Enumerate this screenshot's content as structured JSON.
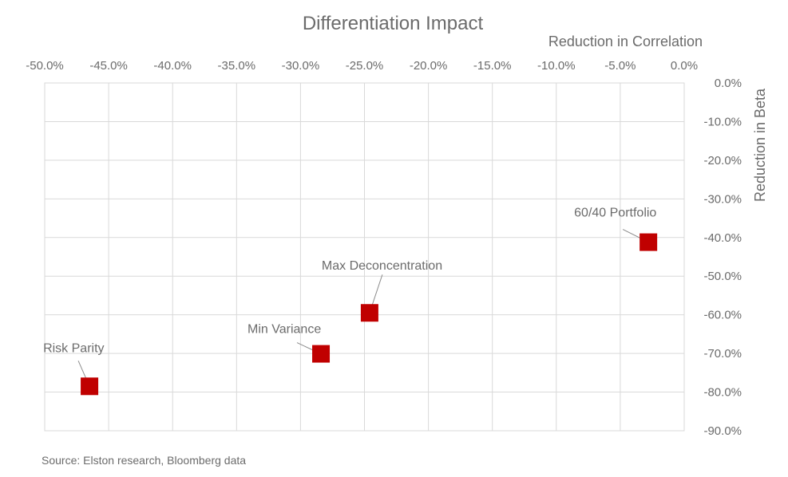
{
  "chart_data": {
    "type": "scatter",
    "title": "Differentiation Impact",
    "xlabel": "Reduction in Correlation",
    "ylabel": "Reduction in Beta",
    "xlim": [
      -0.5,
      0.0
    ],
    "ylim": [
      -0.9,
      0.0
    ],
    "x_ticks": [
      -0.5,
      -0.45,
      -0.4,
      -0.35,
      -0.3,
      -0.25,
      -0.2,
      -0.15,
      -0.1,
      -0.05,
      0.0
    ],
    "y_ticks": [
      0.0,
      -0.1,
      -0.2,
      -0.3,
      -0.4,
      -0.5,
      -0.6,
      -0.7,
      -0.8,
      -0.9
    ],
    "x_tick_labels": [
      "-50.0%",
      "-45.0%",
      "-40.0%",
      "-35.0%",
      "-30.0%",
      "-25.0%",
      "-20.0%",
      "-15.0%",
      "-10.0%",
      "-5.0%",
      "0.0%"
    ],
    "y_tick_labels": [
      "0.0%",
      "-10.0%",
      "-20.0%",
      "-30.0%",
      "-40.0%",
      "-50.0%",
      "-60.0%",
      "-70.0%",
      "-80.0%",
      "-90.0%"
    ],
    "x_axis_position": "top",
    "y_axis_position": "right",
    "grid": true,
    "marker_color": "#c00000",
    "marker_shape": "square",
    "points": [
      {
        "label": "Risk Parity",
        "x": -0.465,
        "y": -0.785
      },
      {
        "label": "Min Variance",
        "x": -0.284,
        "y": -0.701
      },
      {
        "label": "Max Deconcentration",
        "x": -0.246,
        "y": -0.595
      },
      {
        "label": "60/40 Portfolio",
        "x": -0.028,
        "y": -0.412
      }
    ]
  },
  "footer": {
    "source": "Source: Elston research, Bloomberg data"
  }
}
